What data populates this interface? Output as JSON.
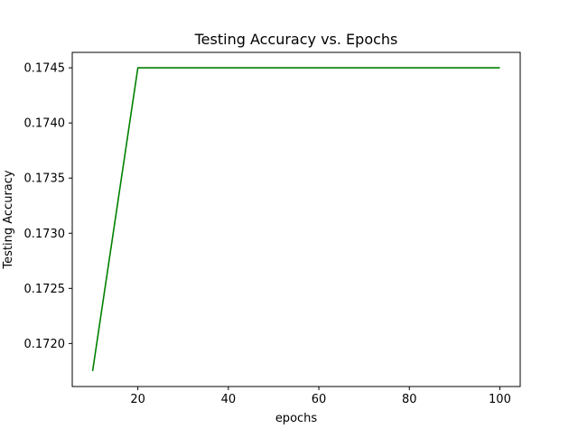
{
  "chart_data": {
    "type": "line",
    "title": "Testing Accuracy vs. Epochs",
    "xlabel": "epochs",
    "ylabel": "Testing Accuracy",
    "xlim": [
      5.5,
      104.5
    ],
    "ylim": [
      0.17161,
      0.17464
    ],
    "x_ticks": [
      20,
      40,
      60,
      80,
      100
    ],
    "x_tick_labels": [
      "20",
      "40",
      "60",
      "80",
      "100"
    ],
    "y_ticks": [
      0.172,
      0.1725,
      0.173,
      0.1735,
      0.174,
      0.1745
    ],
    "y_tick_labels": [
      "0.1720",
      "0.1725",
      "0.1730",
      "0.1735",
      "0.1740",
      "0.1745"
    ],
    "grid": false,
    "series": [
      {
        "color": "#008000",
        "x": [
          10,
          20,
          30,
          40,
          50,
          60,
          70,
          80,
          90,
          100
        ],
        "values": [
          0.17175,
          0.1745,
          0.1745,
          0.1745,
          0.1745,
          0.1745,
          0.1745,
          0.1745,
          0.1745,
          0.1745
        ]
      }
    ]
  }
}
